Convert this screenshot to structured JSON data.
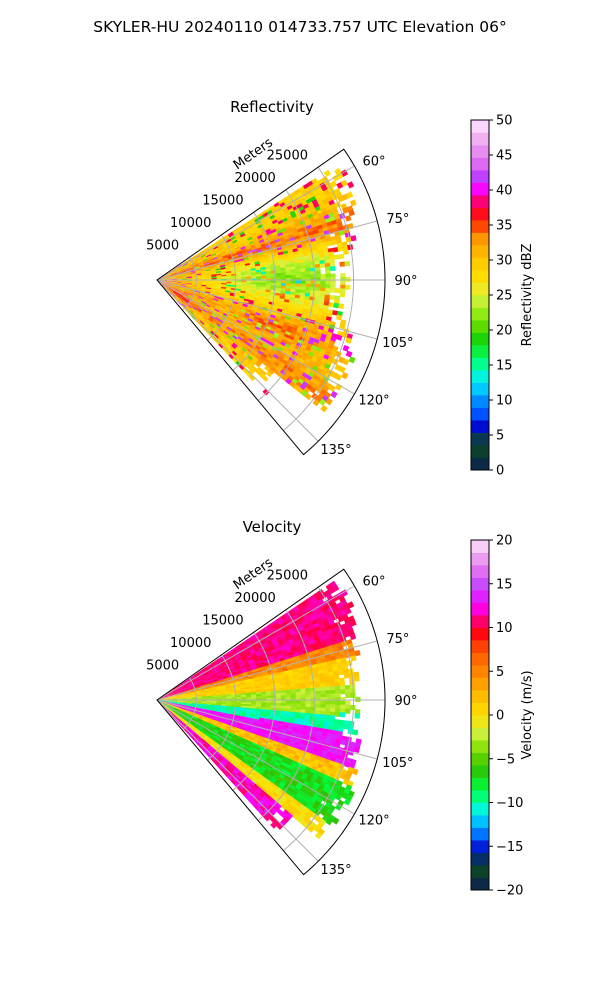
{
  "figure": {
    "suptitle": "SKYLER-HU  20240110  014733.757 UTC Elevation 06°"
  },
  "chart_data": [
    {
      "type": "heatmap",
      "subtype": "polar-sector (PPI)",
      "title": "Reflectivity",
      "radial_axis_label": "Meters",
      "radial_ticks": [
        5000,
        10000,
        15000,
        20000,
        25000
      ],
      "radial_tick_labels": [
        "5000",
        "10000",
        "15000",
        "20000",
        "25000"
      ],
      "r_max": 29000,
      "azimuth_range_deg": [
        55,
        140
      ],
      "azimuth_ticks_deg": [
        60,
        75,
        90,
        105,
        120,
        135
      ],
      "azimuth_tick_labels": [
        "60°",
        "75°",
        "90°",
        "105°",
        "120°",
        "135°"
      ],
      "grid": true,
      "colorbar": {
        "label": "Reflectivity dBZ",
        "range": [
          0,
          50
        ],
        "ticks": [
          0,
          5,
          10,
          15,
          20,
          25,
          30,
          35,
          40,
          45,
          50
        ],
        "tick_labels": [
          "0",
          "5",
          "10",
          "15",
          "20",
          "25",
          "30",
          "35",
          "40",
          "45",
          "50"
        ],
        "stops": [
          {
            "v": 0,
            "c": "#0b1a5c"
          },
          {
            "v": 2,
            "c": "#0d3b2e"
          },
          {
            "v": 4,
            "c": "#0a4a2a"
          },
          {
            "v": 6,
            "c": "#0000c8"
          },
          {
            "v": 7.5,
            "c": "#0040ff"
          },
          {
            "v": 10,
            "c": "#0090ff"
          },
          {
            "v": 12,
            "c": "#00d8ff"
          },
          {
            "v": 14,
            "c": "#00ffd0"
          },
          {
            "v": 16,
            "c": "#00ff60"
          },
          {
            "v": 19,
            "c": "#20d000"
          },
          {
            "v": 21,
            "c": "#70e000"
          },
          {
            "v": 23,
            "c": "#a0f020"
          },
          {
            "v": 25,
            "c": "#e0f040"
          },
          {
            "v": 27,
            "c": "#ffe000"
          },
          {
            "v": 30,
            "c": "#ffc800"
          },
          {
            "v": 33,
            "c": "#ff9a00"
          },
          {
            "v": 35,
            "c": "#ff4000"
          },
          {
            "v": 37,
            "c": "#ff0020"
          },
          {
            "v": 38.5,
            "c": "#ff0080"
          },
          {
            "v": 40,
            "c": "#ff00ff"
          },
          {
            "v": 42,
            "c": "#c040ff"
          },
          {
            "v": 44,
            "c": "#e070f0"
          },
          {
            "v": 47,
            "c": "#f0a8f0"
          },
          {
            "v": 50,
            "c": "#ffe8ff"
          }
        ]
      },
      "field_description": "mostly 28-33 dBZ across sector; 20-24 dBZ patch near 90° at 12-20 km; 35-38 dBZ bands near 75° and 110-120°"
    },
    {
      "type": "heatmap",
      "subtype": "polar-sector (PPI)",
      "title": "Velocity",
      "radial_axis_label": "Meters",
      "radial_ticks": [
        5000,
        10000,
        15000,
        20000,
        25000
      ],
      "radial_tick_labels": [
        "5000",
        "10000",
        "15000",
        "20000",
        "25000"
      ],
      "r_max": 29000,
      "azimuth_range_deg": [
        55,
        140
      ],
      "azimuth_ticks_deg": [
        60,
        75,
        90,
        105,
        120,
        135
      ],
      "azimuth_tick_labels": [
        "60°",
        "75°",
        "90°",
        "105°",
        "120°",
        "135°"
      ],
      "grid": true,
      "colorbar": {
        "label": "Velocity (m/s)",
        "range": [
          -20,
          20
        ],
        "ticks": [
          -20,
          -15,
          -10,
          -5,
          0,
          5,
          10,
          15,
          20
        ],
        "tick_labels": [
          "−20",
          "−15",
          "−10",
          "−5",
          "0",
          "5",
          "10",
          "15",
          "20"
        ],
        "stops": [
          {
            "v": -20,
            "c": "#0b1a5c"
          },
          {
            "v": -18.5,
            "c": "#0d3b2e"
          },
          {
            "v": -17,
            "c": "#0a4a2a"
          },
          {
            "v": -15.5,
            "c": "#0000c8"
          },
          {
            "v": -14,
            "c": "#0060ff"
          },
          {
            "v": -12,
            "c": "#00c8ff"
          },
          {
            "v": -10.5,
            "c": "#00ffd0"
          },
          {
            "v": -8.5,
            "c": "#00ff40"
          },
          {
            "v": -6,
            "c": "#30c000"
          },
          {
            "v": -4,
            "c": "#80e000"
          },
          {
            "v": -2,
            "c": "#d0f040"
          },
          {
            "v": 0,
            "c": "#ffe000"
          },
          {
            "v": 2,
            "c": "#ffc000"
          },
          {
            "v": 4.5,
            "c": "#ff9000"
          },
          {
            "v": 7.5,
            "c": "#ff5000"
          },
          {
            "v": 9.5,
            "c": "#ff0010"
          },
          {
            "v": 11,
            "c": "#ff0080"
          },
          {
            "v": 12.5,
            "c": "#ff00ff"
          },
          {
            "v": 14.5,
            "c": "#c040ff"
          },
          {
            "v": 16.5,
            "c": "#e070f0"
          },
          {
            "v": 18.5,
            "c": "#f0b0f0"
          },
          {
            "v": 20,
            "c": "#ffe8ff"
          }
        ]
      },
      "field_description": "+10 to +13 m/s in 60-72° band far range; -2 to +3 m/s around 78-88°; -8 to -12 m/s band near 95-100° close-in; +12 to +15 m/s band near 100-110°; -10 to -5 m/s near 115-130°; +10 to +15 m/s near 130-138° far range"
    }
  ]
}
